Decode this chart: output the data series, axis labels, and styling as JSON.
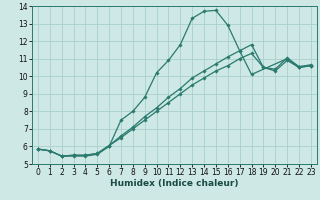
{
  "title": "",
  "xlabel": "Humidex (Indice chaleur)",
  "bg_color": "#cde8e5",
  "grid_color": "#aacfcc",
  "line_color": "#2a7a6e",
  "xlim": [
    -0.5,
    23.5
  ],
  "ylim": [
    5,
    14
  ],
  "xticks": [
    0,
    1,
    2,
    3,
    4,
    5,
    6,
    7,
    8,
    9,
    10,
    11,
    12,
    13,
    14,
    15,
    16,
    17,
    18,
    19,
    20,
    21,
    22,
    23
  ],
  "yticks": [
    5,
    6,
    7,
    8,
    9,
    10,
    11,
    12,
    13,
    14
  ],
  "line1_x": [
    0,
    1,
    2,
    3,
    4,
    5,
    6,
    7,
    8,
    9,
    10,
    11,
    12,
    13,
    14,
    15,
    16,
    17,
    18,
    21,
    22,
    23
  ],
  "line1_y": [
    5.85,
    5.75,
    5.45,
    5.45,
    5.45,
    5.55,
    6.0,
    7.5,
    8.0,
    8.8,
    10.2,
    10.9,
    11.8,
    13.3,
    13.7,
    13.75,
    12.9,
    11.45,
    10.1,
    11.0,
    10.5,
    10.6
  ],
  "line2_x": [
    0,
    1,
    2,
    3,
    4,
    5,
    6,
    7,
    8,
    9,
    10,
    11,
    12,
    13,
    14,
    15,
    16,
    17,
    18,
    19,
    20,
    21,
    22,
    23
  ],
  "line2_y": [
    5.85,
    5.75,
    5.45,
    5.5,
    5.5,
    5.6,
    6.05,
    6.5,
    7.0,
    7.5,
    8.0,
    8.5,
    9.0,
    9.5,
    9.9,
    10.3,
    10.6,
    11.0,
    11.3,
    10.5,
    10.3,
    10.9,
    10.5,
    10.6
  ],
  "line3_x": [
    0,
    1,
    2,
    3,
    4,
    5,
    6,
    7,
    8,
    9,
    10,
    11,
    12,
    13,
    14,
    15,
    16,
    17,
    18,
    19,
    20,
    21,
    22,
    23
  ],
  "line3_y": [
    5.85,
    5.75,
    5.45,
    5.5,
    5.5,
    5.6,
    6.05,
    6.6,
    7.1,
    7.7,
    8.2,
    8.8,
    9.3,
    9.9,
    10.3,
    10.7,
    11.1,
    11.45,
    11.8,
    10.5,
    10.4,
    11.05,
    10.55,
    10.65
  ],
  "tick_fontsize": 5.5,
  "xlabel_fontsize": 6.5,
  "marker_size": 1.8,
  "linewidth": 0.9
}
